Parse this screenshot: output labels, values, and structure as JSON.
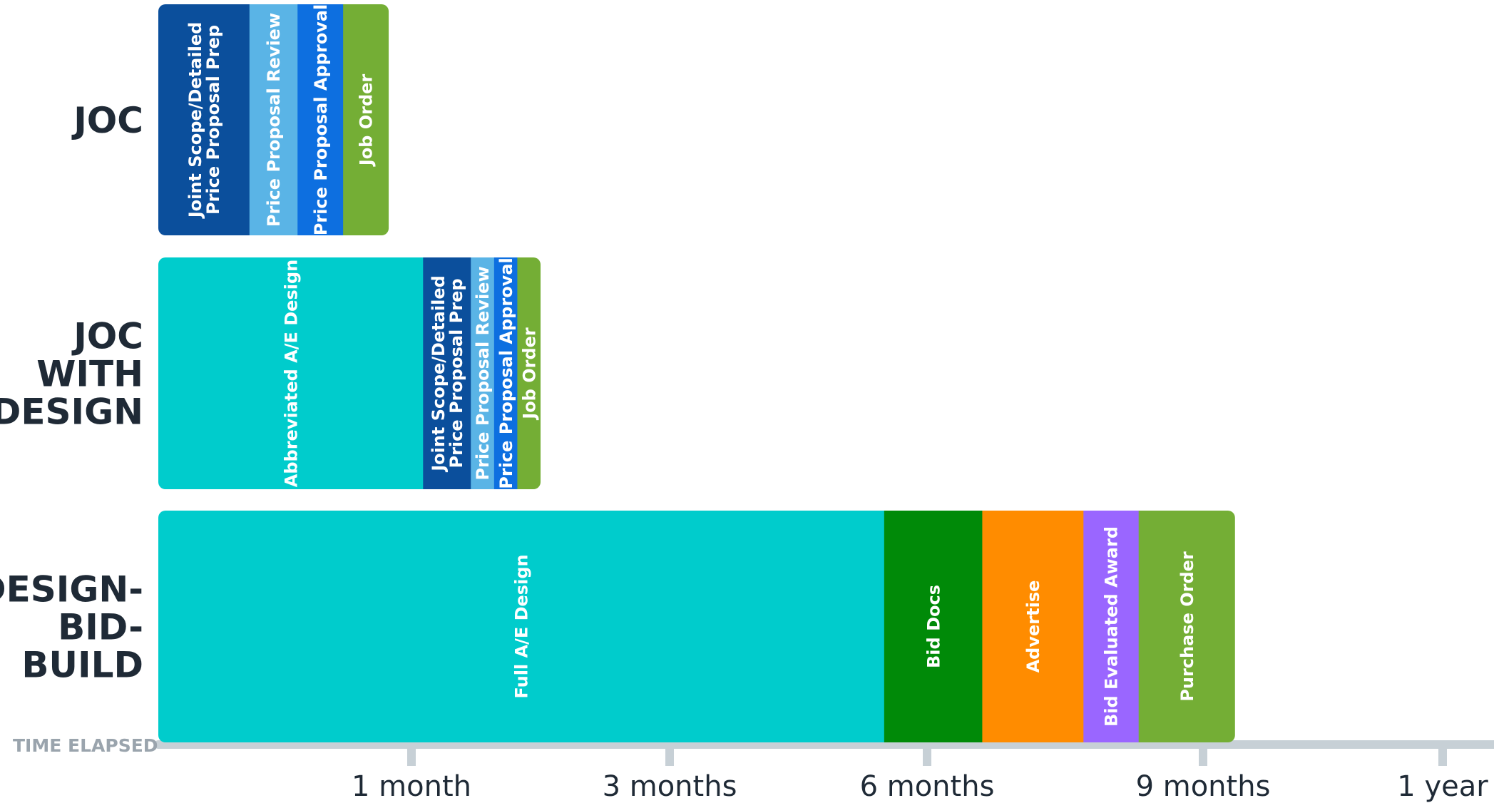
{
  "chart_data": {
    "type": "bar",
    "orientation": "horizontal-stacked",
    "axis_title": "TIME ELAPSED",
    "ticks": [
      {
        "label": "1 month",
        "value": 1
      },
      {
        "label": "3 months",
        "value": 3
      },
      {
        "label": "6 months",
        "value": 6
      },
      {
        "label": "9 months",
        "value": 9
      },
      {
        "label": "1 year",
        "value": 12
      }
    ],
    "rows": [
      {
        "label_lines": [
          "JOC"
        ],
        "segments": [
          {
            "label_lines": [
              "Joint Scope/Detailed",
              "Price Proposal Prep"
            ],
            "start": 0,
            "end": 0.36,
            "color": "#0b4f9c"
          },
          {
            "label_lines": [
              "Price Proposal Review"
            ],
            "start": 0.36,
            "end": 0.55,
            "color": "#5ab4e6"
          },
          {
            "label_lines": [
              "Price Proposal Approval"
            ],
            "start": 0.55,
            "end": 0.73,
            "color": "#0d6fe0"
          },
          {
            "label_lines": [
              "Job Order"
            ],
            "start": 0.73,
            "end": 0.91,
            "color": "#74ae35"
          }
        ]
      },
      {
        "label_lines": [
          "JOC",
          "WITH",
          "DESIGN"
        ],
        "segments": [
          {
            "label_lines": [
              "Abbreviated A/E Design"
            ],
            "start": 0,
            "end": 1.09,
            "color": "#00cccc"
          },
          {
            "label_lines": [
              "Joint Scope/Detailed",
              "Price Proposal Prep"
            ],
            "start": 1.09,
            "end": 1.46,
            "color": "#0b4f9c"
          },
          {
            "label_lines": [
              "Price Proposal Review"
            ],
            "start": 1.46,
            "end": 1.64,
            "color": "#5ab4e6"
          },
          {
            "label_lines": [
              "Price Proposal Approval"
            ],
            "start": 1.64,
            "end": 1.82,
            "color": "#0d6fe0"
          },
          {
            "label_lines": [
              "Job Order"
            ],
            "start": 1.82,
            "end": 2.0,
            "color": "#74ae35"
          }
        ]
      },
      {
        "label_lines": [
          "DESIGN-",
          "BID-",
          "BUILD"
        ],
        "segments": [
          {
            "label_lines": [
              "Full A/E Design"
            ],
            "start": 0,
            "end": 5.5,
            "color": "#00cccc"
          },
          {
            "label_lines": [
              "Bid Docs"
            ],
            "start": 5.5,
            "end": 6.6,
            "color": "#008a08"
          },
          {
            "label_lines": [
              "Advertise"
            ],
            "start": 6.6,
            "end": 7.7,
            "color": "#ff8c00"
          },
          {
            "label_lines": [
              "Bid Evaluated Award"
            ],
            "start": 7.7,
            "end": 8.3,
            "color": "#9a66ff"
          },
          {
            "label_lines": [
              "Purchase Order"
            ],
            "start": 8.3,
            "end": 9.4,
            "color": "#74ae35"
          }
        ]
      }
    ]
  }
}
